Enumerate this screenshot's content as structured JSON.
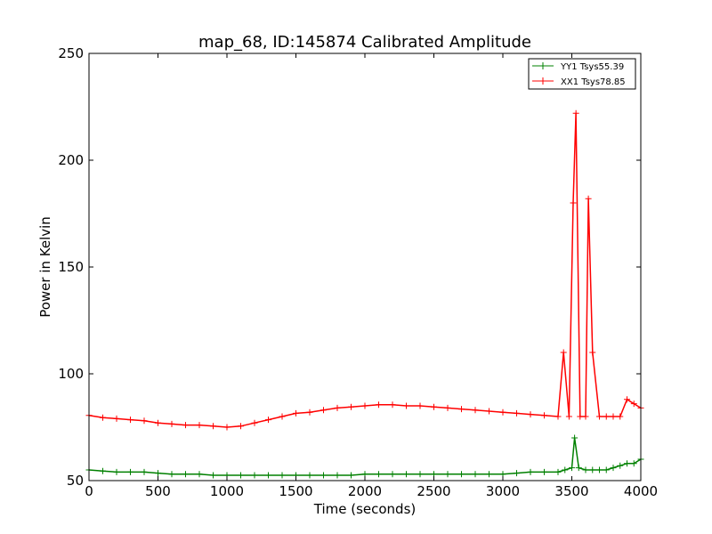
{
  "chart_data": {
    "type": "line",
    "title": "map_68, ID:145874 Calibrated Amplitude",
    "xlabel": "Time (seconds)",
    "ylabel": "Power in Kelvin",
    "xlim": [
      0,
      4000
    ],
    "ylim": [
      50,
      250
    ],
    "xticks": [
      0,
      500,
      1000,
      1500,
      2000,
      2500,
      3000,
      3500,
      4000
    ],
    "yticks": [
      50,
      100,
      150,
      200,
      250
    ],
    "xtick_labels": [
      "0",
      "500",
      "1000",
      "1500",
      "2000",
      "2500",
      "3000",
      "3500",
      "4000"
    ],
    "ytick_labels": [
      "50",
      "100",
      "150",
      "200",
      "250"
    ],
    "grid": false,
    "legend_position": "top-right",
    "series": [
      {
        "name": "YY1 Tsys55.39",
        "color": "#008000",
        "marker": "+",
        "x": [
          0,
          100,
          200,
          300,
          400,
          500,
          600,
          700,
          800,
          900,
          1000,
          1100,
          1200,
          1300,
          1400,
          1500,
          1600,
          1700,
          1800,
          1900,
          2000,
          2100,
          2200,
          2300,
          2400,
          2500,
          2600,
          2700,
          2800,
          2900,
          3000,
          3100,
          3200,
          3300,
          3400,
          3450,
          3500,
          3520,
          3550,
          3600,
          3650,
          3700,
          3750,
          3800,
          3850,
          3900,
          3950,
          4000
        ],
        "y": [
          55,
          54.5,
          54,
          54,
          54,
          53.5,
          53,
          53,
          53,
          52.5,
          52.5,
          52.5,
          52.5,
          52.5,
          52.5,
          52.5,
          52.5,
          52.5,
          52.5,
          52.5,
          53,
          53,
          53,
          53,
          53,
          53,
          53,
          53,
          53,
          53,
          53,
          53.5,
          54,
          54,
          54,
          55,
          56,
          70,
          56,
          55,
          55,
          55,
          55,
          56,
          57,
          58,
          58,
          60
        ]
      },
      {
        "name": "XX1 Tsys78.85",
        "color": "#ff0000",
        "marker": "+",
        "x": [
          0,
          100,
          200,
          300,
          400,
          500,
          600,
          700,
          800,
          900,
          1000,
          1100,
          1200,
          1300,
          1400,
          1500,
          1600,
          1700,
          1800,
          1900,
          2000,
          2100,
          2200,
          2300,
          2400,
          2500,
          2600,
          2700,
          2800,
          2900,
          3000,
          3100,
          3200,
          3300,
          3400,
          3440,
          3480,
          3510,
          3530,
          3560,
          3600,
          3620,
          3650,
          3700,
          3750,
          3800,
          3850,
          3900,
          3950,
          4000
        ],
        "y": [
          80.5,
          79.5,
          79,
          78.5,
          78,
          77,
          76.5,
          76,
          76,
          75.5,
          75,
          75.5,
          77,
          78.5,
          80,
          81.5,
          82,
          83,
          84,
          84.5,
          85,
          85.5,
          85.5,
          85,
          85,
          84.5,
          84,
          83.5,
          83,
          82.5,
          82,
          81.5,
          81,
          80.5,
          80,
          110,
          80,
          180,
          222,
          80,
          80,
          182,
          110,
          80,
          80,
          80,
          80,
          88,
          86,
          84
        ]
      }
    ]
  }
}
